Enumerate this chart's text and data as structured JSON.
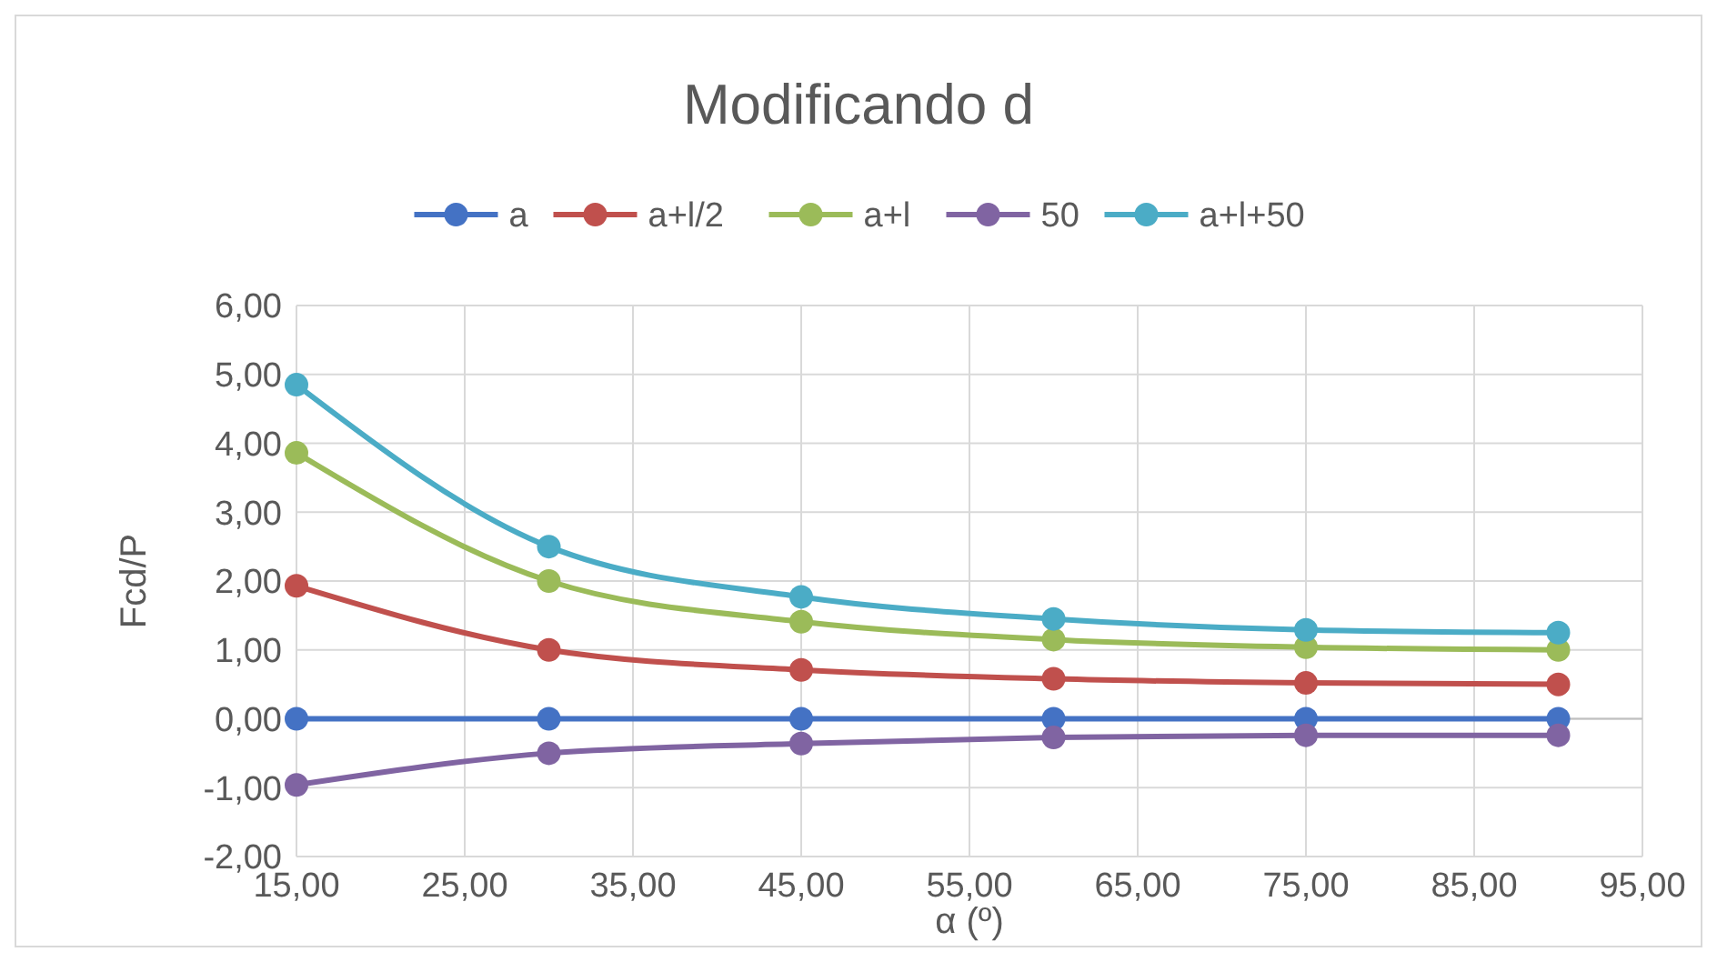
{
  "chart_data": {
    "type": "line",
    "title": "Modificando d",
    "xlabel": "α (º)",
    "ylabel": "Fcd/P",
    "x": [
      15,
      30,
      45,
      60,
      75,
      90
    ],
    "series": [
      {
        "name": "a",
        "color": "#4472c4",
        "values": [
          0,
          0,
          0,
          0,
          0,
          0
        ]
      },
      {
        "name": "a+l/2",
        "color": "#c0504d",
        "values": [
          1.93,
          1.0,
          0.71,
          0.58,
          0.52,
          0.5
        ]
      },
      {
        "name": "a+l",
        "color": "#9bbb59",
        "values": [
          3.86,
          2.0,
          1.41,
          1.15,
          1.04,
          1.0
        ]
      },
      {
        "name": "50",
        "color": "#8064a2",
        "values": [
          -0.96,
          -0.5,
          -0.36,
          -0.27,
          -0.24,
          -0.24
        ]
      },
      {
        "name": "a+l+50",
        "color": "#4bacc6",
        "values": [
          4.85,
          2.5,
          1.77,
          1.45,
          1.29,
          1.25
        ]
      }
    ],
    "xlim": [
      15,
      95
    ],
    "ylim": [
      -2,
      6
    ],
    "xticks": [
      {
        "value": 15,
        "label": "15,00"
      },
      {
        "value": 25,
        "label": "25,00"
      },
      {
        "value": 35,
        "label": "35,00"
      },
      {
        "value": 45,
        "label": "45,00"
      },
      {
        "value": 55,
        "label": "55,00"
      },
      {
        "value": 65,
        "label": "65,00"
      },
      {
        "value": 75,
        "label": "75,00"
      },
      {
        "value": 85,
        "label": "85,00"
      },
      {
        "value": 95,
        "label": "95,00"
      }
    ],
    "yticks": [
      {
        "value": -2,
        "label": "-2,00"
      },
      {
        "value": -1,
        "label": "-1,00"
      },
      {
        "value": 0,
        "label": "0,00"
      },
      {
        "value": 1,
        "label": "1,00"
      },
      {
        "value": 2,
        "label": "2,00"
      },
      {
        "value": 3,
        "label": "3,00"
      },
      {
        "value": 4,
        "label": "4,00"
      },
      {
        "value": 5,
        "label": "5,00"
      },
      {
        "value": 6,
        "label": "6,00"
      }
    ],
    "grid": true,
    "legend": "top",
    "marker": "circle",
    "line_style": "solid"
  }
}
